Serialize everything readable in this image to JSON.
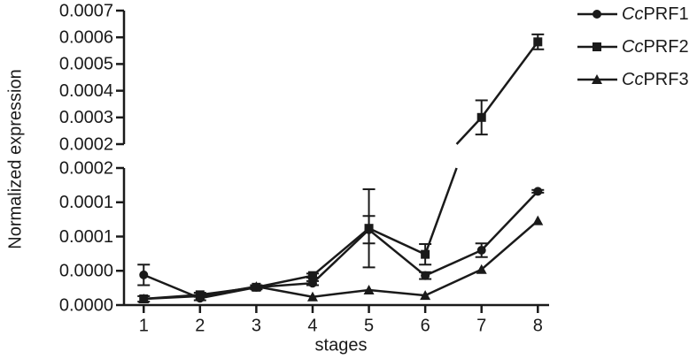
{
  "chart_data": {
    "type": "line",
    "xlabel": "stages",
    "ylabel": "Normalized expression",
    "x": [
      1,
      2,
      3,
      4,
      5,
      6,
      7,
      8
    ],
    "xlim": [
      0.65,
      8.2
    ],
    "xticks": [
      1,
      2,
      3,
      4,
      5,
      6,
      7,
      8
    ],
    "y_segments": [
      {
        "ylim": [
          0,
          0.0002
        ],
        "yticks": [
          {
            "value": 0,
            "label": "0.0000"
          },
          {
            "value": 5e-05,
            "label": "0.0000"
          },
          {
            "value": 0.0001,
            "label": "0.0001"
          },
          {
            "value": 0.00015,
            "label": "0.0001"
          },
          {
            "value": 0.0002,
            "label": "0.0002"
          }
        ]
      },
      {
        "ylim": [
          0.0002,
          0.0007
        ],
        "yticks": [
          0.0002,
          0.0003,
          0.0004,
          0.0005,
          0.0006,
          0.0007
        ]
      }
    ],
    "legend": "right",
    "series": [
      {
        "name": "CcPRF1",
        "color": "#1a1a1a",
        "marker": "circle",
        "values": [
          4.4e-05,
          1e-05,
          2.6e-05,
          3.2e-05,
          0.00011,
          4.3e-05,
          8e-05,
          0.000166
        ],
        "errors": [
          1.5e-05,
          3e-06,
          3e-06,
          3e-06,
          2e-05,
          5e-06,
          1e-05,
          2e-06
        ]
      },
      {
        "name": "CcPRF2",
        "color": "#1a1a1a",
        "marker": "square",
        "values": [
          9e-06,
          1.5e-05,
          2.6e-05,
          4.3e-05,
          0.000112,
          7.4e-05,
          0.0003,
          0.000583
        ],
        "errors": [
          4e-06,
          3e-06,
          2e-06,
          3e-06,
          5.7e-05,
          1.5e-05,
          6.4e-05,
          2.8e-05
        ]
      },
      {
        "name": "CcPRF3",
        "color": "#1a1a1a",
        "marker": "triangle",
        "values": [
          9e-06,
          1.3e-05,
          2.7e-05,
          1.2e-05,
          2.2e-05,
          1.4e-05,
          5.2e-05,
          0.000123
        ],
        "errors": [
          0,
          0,
          0,
          0,
          0,
          0,
          0,
          0
        ]
      }
    ]
  }
}
